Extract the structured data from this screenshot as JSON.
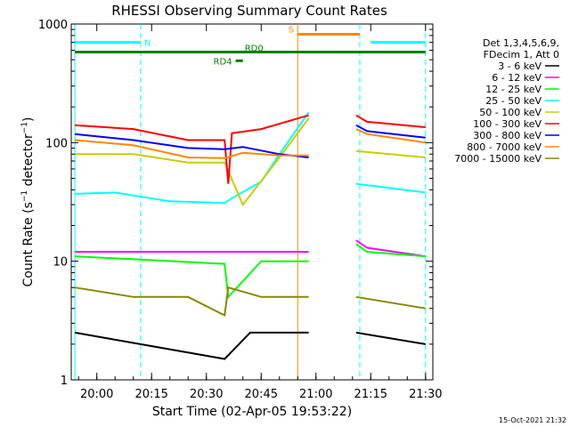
{
  "chart_data": {
    "type": "line",
    "title": "RHESSI Observing Summary Count Rates",
    "xlabel": "Start Time (02-Apr-05 19:53:22)",
    "ylabel": "Count Rate (s",
    "ylabel_sup": "−1",
    "ylabel_rest": " detector",
    "ylabel_end": ")",
    "x_ticks": [
      "20:00",
      "20:15",
      "20:30",
      "20:45",
      "21:00",
      "21:15",
      "21:30"
    ],
    "y_ticks": [
      "1",
      "10",
      "100",
      "1000"
    ],
    "y_scale": "log",
    "xlim": [
      "19:53",
      "21:32"
    ],
    "ylim": [
      1,
      1000
    ],
    "timestamp": "15-Oct-2021 21:32",
    "legend": {
      "header1": "Det 1,3,4,5,6,9,",
      "header2": "FDecim 1, Att 0",
      "placement": "top-right, outside plot"
    },
    "series": [
      {
        "name": "3 - 6 keV",
        "color": "#000000",
        "segments": [
          {
            "x": [
              "19:54",
              "20:35",
              "20:42",
              "20:58"
            ],
            "y": [
              2.5,
              1.5,
              2.5,
              2.5
            ]
          },
          {
            "x": [
              "21:11",
              "21:30"
            ],
            "y": [
              2.5,
              2.0
            ]
          }
        ]
      },
      {
        "name": "6 - 12 keV",
        "color": "#ff00ff",
        "segments": [
          {
            "x": [
              "19:54",
              "20:58"
            ],
            "y": [
              12,
              12
            ]
          },
          {
            "x": [
              "21:11",
              "21:14",
              "21:30"
            ],
            "y": [
              15,
              13,
              11
            ]
          }
        ]
      },
      {
        "name": "12 - 25 keV",
        "color": "#00ff00",
        "segments": [
          {
            "x": [
              "19:54",
              "20:35",
              "20:36",
              "20:45",
              "20:58"
            ],
            "y": [
              11,
              9.5,
              5,
              10,
              10
            ]
          },
          {
            "x": [
              "21:11",
              "21:14",
              "21:30"
            ],
            "y": [
              14,
              12,
              11
            ]
          }
        ]
      },
      {
        "name": "25 - 50 keV",
        "color": "#00ffff",
        "segments": [
          {
            "x": [
              "19:54",
              "20:05",
              "20:20",
              "20:35",
              "20:37",
              "20:45",
              "20:50",
              "20:58"
            ],
            "y": [
              37,
              38,
              32,
              31,
              34,
              47,
              80,
              180
            ]
          },
          {
            "x": [
              "21:11",
              "21:30"
            ],
            "y": [
              45,
              38
            ]
          }
        ]
      },
      {
        "name": "50 - 100 keV",
        "color": "#cccc00",
        "segments": [
          {
            "x": [
              "19:54",
              "20:10",
              "20:25",
              "20:35",
              "20:40",
              "20:50",
              "20:58"
            ],
            "y": [
              80,
              80,
              68,
              68,
              30,
              75,
              160
            ]
          },
          {
            "x": [
              "21:11",
              "21:30"
            ],
            "y": [
              85,
              75
            ]
          }
        ]
      },
      {
        "name": "100 - 300 keV",
        "color": "#ff0000",
        "segments": [
          {
            "x": [
              "19:54",
              "20:10",
              "20:25",
              "20:35",
              "20:36",
              "20:37",
              "20:45",
              "20:58"
            ],
            "y": [
              140,
              130,
              105,
              105,
              45,
              120,
              130,
              170
            ]
          },
          {
            "x": [
              "21:11",
              "21:14",
              "21:30"
            ],
            "y": [
              170,
              150,
              135
            ]
          }
        ]
      },
      {
        "name": "300 - 800 keV",
        "color": "#0000ff",
        "segments": [
          {
            "x": [
              "19:54",
              "20:10",
              "20:25",
              "20:35",
              "20:40",
              "20:50",
              "20:58"
            ],
            "y": [
              118,
              105,
              90,
              88,
              92,
              80,
              75
            ]
          },
          {
            "x": [
              "21:11",
              "21:14",
              "21:30"
            ],
            "y": [
              140,
              125,
              110
            ]
          }
        ]
      },
      {
        "name": "800 - 7000 keV",
        "color": "#ff8800",
        "segments": [
          {
            "x": [
              "19:54",
              "20:10",
              "20:25",
              "20:35",
              "20:40",
              "20:50",
              "20:58"
            ],
            "y": [
              105,
              95,
              75,
              74,
              82,
              78,
              78
            ]
          },
          {
            "x": [
              "21:11",
              "21:14",
              "21:30"
            ],
            "y": [
              130,
              118,
              100
            ]
          }
        ]
      },
      {
        "name": "7000 - 15000 keV",
        "color": "#888800",
        "segments": [
          {
            "x": [
              "19:54",
              "20:10",
              "20:25",
              "20:35",
              "20:36",
              "20:45",
              "20:58"
            ],
            "y": [
              6,
              5,
              5,
              3.5,
              6,
              5,
              5
            ]
          },
          {
            "x": [
              "21:11",
              "21:30"
            ],
            "y": [
              5,
              4
            ]
          }
        ]
      }
    ],
    "flags": [
      {
        "name": "N",
        "color": "#00ffff",
        "segments": [
          [
            "19:54",
            "20:12"
          ],
          [
            "21:15",
            "21:30"
          ]
        ],
        "level": 700
      },
      {
        "name": "S",
        "color": "#ff8800",
        "segments": [
          [
            "20:55",
            "21:12"
          ]
        ],
        "level": 820
      },
      {
        "name": "RD0",
        "color": "#008000",
        "segments": [
          [
            "19:54",
            "21:30"
          ]
        ],
        "level": 580
      },
      {
        "name": "RD4",
        "color": "#008000",
        "segments": [
          [
            "20:38",
            "20:40"
          ]
        ],
        "level": 490
      }
    ],
    "vlines": [
      {
        "x": "19:54",
        "color": "#00ffff",
        "style": "solid"
      },
      {
        "x": "20:12",
        "color": "#00ffff",
        "style": "dashed"
      },
      {
        "x": "20:55",
        "color": "#ff8800",
        "style": "solid"
      },
      {
        "x": "21:12",
        "color": "#00ffff",
        "style": "dashed"
      },
      {
        "x": "21:30",
        "color": "#00ffff",
        "style": "dashed"
      }
    ]
  }
}
